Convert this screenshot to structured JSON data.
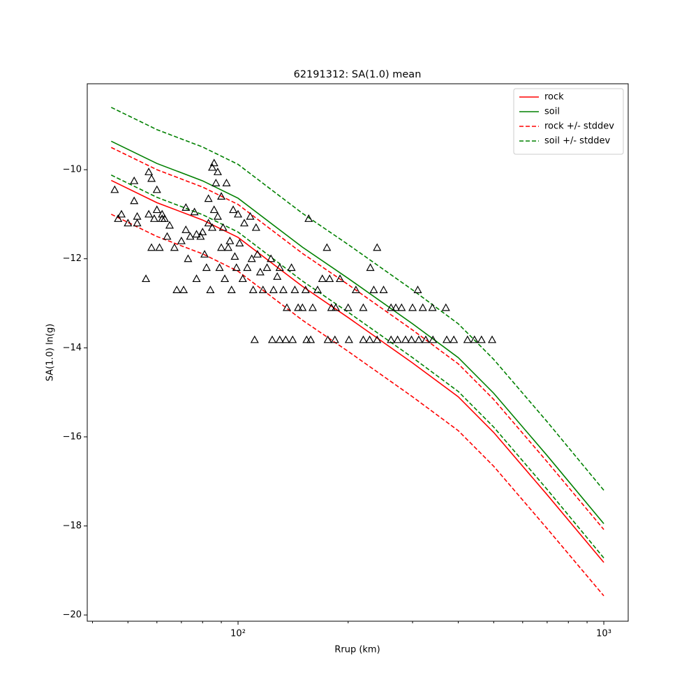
{
  "chart_data": {
    "type": "line",
    "title": "62191312: SA(1.0) mean",
    "x_label": "Rrup (km)",
    "y_label": "SA(1.0) ln(g)",
    "log_x": true,
    "xlim": [
      38.7,
      1166
    ],
    "ylim": [
      -20.14,
      -8.07
    ],
    "xticks": [
      {
        "value": 100,
        "label": "10²"
      },
      {
        "value": 1000,
        "label": "10³"
      }
    ],
    "xminorticks": [
      40,
      50,
      60,
      70,
      80,
      90,
      200,
      300,
      400,
      500,
      600,
      700,
      800,
      900
    ],
    "yticks": [
      {
        "value": -20,
        "label": "−20"
      },
      {
        "value": -18,
        "label": "−18"
      },
      {
        "value": -16,
        "label": "−16"
      },
      {
        "value": -14,
        "label": "−14"
      },
      {
        "value": -12,
        "label": "−12"
      },
      {
        "value": -10,
        "label": "−10"
      }
    ],
    "legend": "upper right",
    "x": [
      45,
      60,
      80,
      100,
      150,
      200,
      300,
      400,
      500,
      700,
      1000
    ],
    "series": [
      {
        "name": "rock",
        "color": "#ff0000",
        "dashed": false,
        "values": [
          -10.24,
          -10.74,
          -11.13,
          -11.52,
          -12.62,
          -13.32,
          -14.34,
          -15.1,
          -15.9,
          -17.3,
          -18.82
        ]
      },
      {
        "name": "soil",
        "color": "#008000",
        "dashed": false,
        "values": [
          -9.36,
          -9.86,
          -10.25,
          -10.64,
          -11.74,
          -12.44,
          -13.46,
          -14.22,
          -15.02,
          -16.42,
          -17.95
        ]
      },
      {
        "name": "rock +/- stddev",
        "color": "#ff0000",
        "dashed": true,
        "upper": [
          -9.5,
          -10.0,
          -10.39,
          -10.78,
          -11.88,
          -12.58,
          -13.6,
          -14.36,
          -15.16,
          -16.56,
          -18.08
        ],
        "lower": [
          -11.0,
          -11.5,
          -11.89,
          -12.28,
          -13.38,
          -14.08,
          -15.1,
          -15.86,
          -16.66,
          -18.06,
          -19.57
        ]
      },
      {
        "name": "soil +/- stddev",
        "color": "#008000",
        "dashed": true,
        "upper": [
          -8.6,
          -9.1,
          -9.49,
          -9.88,
          -10.98,
          -11.68,
          -12.7,
          -13.46,
          -14.26,
          -15.66,
          -17.2
        ],
        "lower": [
          -10.12,
          -10.62,
          -11.01,
          -11.4,
          -12.5,
          -13.2,
          -14.22,
          -14.98,
          -15.78,
          -17.18,
          -18.72
        ]
      }
    ],
    "scatter": {
      "color": "#000000",
      "x": [
        46,
        47,
        48,
        50,
        52,
        52,
        53,
        53,
        56,
        57,
        57,
        58,
        58,
        59,
        60,
        60,
        61,
        62,
        62,
        63,
        64,
        65,
        67,
        68,
        70,
        71,
        72,
        72,
        73,
        74,
        76,
        77,
        77,
        79,
        80,
        81,
        82,
        83,
        83,
        84,
        85,
        85,
        86,
        86,
        87,
        88,
        88,
        89,
        90,
        90,
        91,
        92,
        93,
        94,
        95,
        96,
        97,
        98,
        99,
        100,
        101,
        103,
        104,
        106,
        108,
        109,
        110,
        112,
        113,
        115,
        117,
        120,
        123,
        125,
        128,
        130,
        133,
        136,
        140,
        143,
        146,
        150,
        153,
        156,
        160,
        165,
        170,
        175,
        178,
        180,
        185,
        190,
        200,
        210,
        220,
        230,
        235,
        240,
        250,
        262,
        270,
        280,
        300,
        310,
        320,
        340,
        370,
        111,
        124,
        130,
        135,
        141,
        154,
        158,
        176,
        184,
        201,
        220,
        229,
        240,
        262,
        273,
        287,
        298,
        312,
        326,
        341,
        372,
        389,
        424,
        443,
        463,
        495
      ],
      "values": [
        -10.45,
        -11.1,
        -11.0,
        -11.2,
        -10.25,
        -10.7,
        -11.05,
        -11.2,
        -12.45,
        -10.05,
        -11.0,
        -10.2,
        -11.75,
        -11.1,
        -10.45,
        -10.9,
        -11.75,
        -11.0,
        -11.1,
        -11.1,
        -11.5,
        -11.25,
        -11.75,
        -12.7,
        -11.6,
        -12.7,
        -10.85,
        -11.35,
        -12.0,
        -11.5,
        -10.95,
        -12.45,
        -11.45,
        -11.5,
        -11.4,
        -11.9,
        -12.2,
        -10.65,
        -11.2,
        -12.7,
        -9.95,
        -11.3,
        -9.85,
        -10.9,
        -10.3,
        -10.05,
        -11.05,
        -12.2,
        -10.6,
        -11.75,
        -11.3,
        -12.45,
        -10.3,
        -11.75,
        -11.6,
        -12.7,
        -10.9,
        -11.95,
        -12.2,
        -11.0,
        -11.65,
        -12.45,
        -11.2,
        -12.2,
        -11.05,
        -12.0,
        -12.7,
        -11.3,
        -11.9,
        -12.3,
        -12.7,
        -12.2,
        -12.0,
        -12.7,
        -12.4,
        -12.2,
        -12.7,
        -13.1,
        -12.2,
        -12.7,
        -13.1,
        -13.1,
        -12.7,
        -11.1,
        -13.1,
        -12.7,
        -12.45,
        -11.75,
        -12.45,
        -13.1,
        -13.1,
        -12.45,
        -13.1,
        -12.7,
        -13.1,
        -12.2,
        -12.7,
        -11.75,
        -12.7,
        -13.1,
        -13.1,
        -13.1,
        -13.1,
        -12.7,
        -13.1,
        -13.1,
        -13.1,
        -13.82,
        -13.82,
        -13.82,
        -13.82,
        -13.82,
        -13.82,
        -13.82,
        -13.82,
        -13.82,
        -13.82,
        -13.82,
        -13.82,
        -13.82,
        -13.82,
        -13.82,
        -13.82,
        -13.82,
        -13.82,
        -13.82,
        -13.82,
        -13.82,
        -13.82,
        -13.82,
        -13.82,
        -13.82,
        -13.82
      ]
    }
  }
}
